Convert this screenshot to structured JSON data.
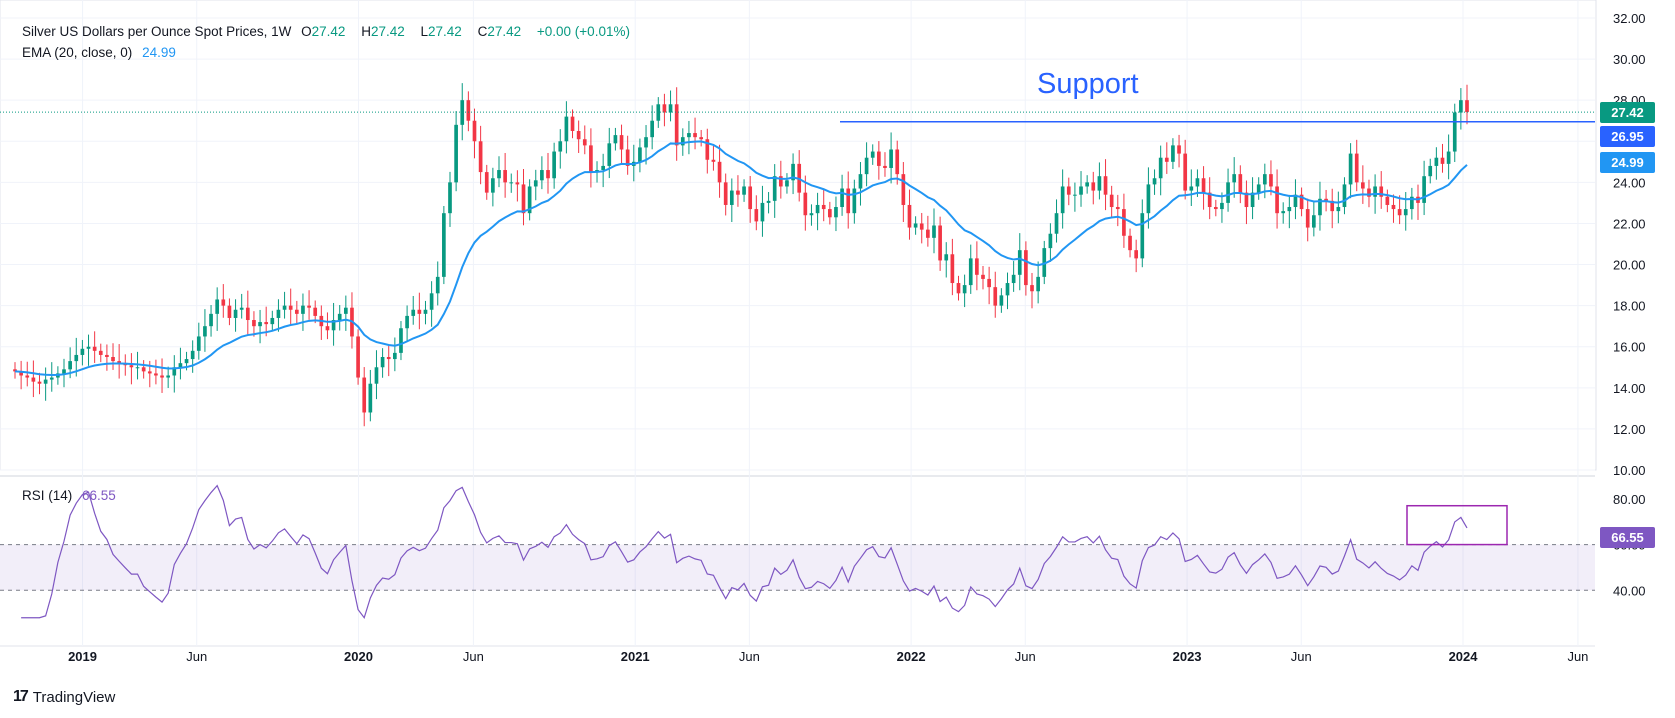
{
  "header": {
    "symbol": "Silver US Dollars per Ounce Spot Prices, 1W",
    "o_label": "O",
    "o_val": "27.42",
    "h_label": "H",
    "h_val": "27.42",
    "l_label": "L",
    "l_val": "27.42",
    "c_label": "C",
    "c_val": "27.42",
    "change": "+0.00 (+0.01%)"
  },
  "ema_legend": {
    "label": "EMA (20, close, 0)",
    "value": "24.99"
  },
  "rsi_legend": {
    "label": "RSI (14)",
    "value": "66.55"
  },
  "price_tags": {
    "last": "27.42",
    "support": "26.95",
    "ema": "24.99",
    "rsi": "66.55"
  },
  "annotation": {
    "text": "Support"
  },
  "branding": {
    "text": "TradingView",
    "mark": "17"
  },
  "colors": {
    "up": "#089981",
    "down": "#f23645",
    "ema": "#2196f3",
    "rsi": "#7e57c2",
    "support": "#2962ff",
    "box": "#9c27b0"
  },
  "chart_data": [
    {
      "type": "candlestick",
      "title": "Silver US Dollars per Ounce Spot Prices, 1W",
      "y_ticks": [
        "32.00",
        "30.00",
        "28.00",
        "26.00",
        "24.00",
        "22.00",
        "20.00",
        "18.00",
        "16.00",
        "14.00",
        "12.00",
        "10.00"
      ],
      "ylim": [
        10,
        32
      ],
      "x_ticks": [
        "2019",
        "Jun",
        "2020",
        "Jun",
        "2021",
        "Jun",
        "2022",
        "Jun",
        "2023",
        "Jun",
        "2024",
        "Jun"
      ],
      "x_range": [
        "2018-09",
        "2024-10"
      ],
      "support_level": 26.95,
      "last_close": 27.42,
      "close_series_weekly_approx": [
        14.8,
        14.6,
        14.5,
        14.3,
        14.2,
        14.4,
        14.5,
        14.7,
        14.9,
        15.3,
        15.6,
        15.9,
        16.0,
        15.8,
        15.6,
        15.5,
        15.3,
        15.2,
        15.1,
        15.0,
        15.0,
        14.8,
        14.7,
        14.6,
        14.5,
        14.6,
        15.0,
        15.2,
        15.4,
        15.8,
        16.5,
        17.0,
        17.6,
        18.3,
        18.0,
        17.4,
        17.8,
        17.9,
        17.3,
        17.0,
        17.2,
        17.1,
        17.4,
        17.8,
        18.0,
        17.8,
        17.6,
        18.0,
        17.9,
        17.5,
        17.0,
        16.8,
        17.3,
        17.6,
        17.9,
        16.5,
        14.5,
        12.8,
        14.2,
        15.0,
        15.5,
        15.4,
        15.7,
        16.9,
        17.5,
        17.8,
        17.6,
        17.8,
        18.6,
        19.4,
        22.5,
        24.0,
        26.8,
        28.0,
        27.0,
        26.0,
        24.5,
        23.5,
        24.2,
        24.6,
        24.0,
        24.0,
        23.9,
        22.5,
        23.8,
        24.1,
        24.6,
        24.2,
        25.5,
        26.0,
        27.2,
        26.5,
        26.1,
        25.8,
        24.5,
        24.6,
        24.8,
        25.9,
        26.3,
        25.6,
        24.8,
        25.0,
        25.7,
        26.2,
        27.0,
        27.8,
        27.4,
        27.8,
        25.8,
        26.2,
        26.4,
        26.2,
        26.1,
        25.1,
        25.0,
        24.0,
        22.9,
        23.6,
        23.4,
        23.8,
        22.7,
        22.1,
        23.0,
        23.1,
        24.3,
        23.8,
        24.1,
        24.9,
        23.5,
        22.4,
        22.5,
        22.9,
        22.7,
        22.3,
        22.8,
        23.7,
        22.5,
        23.7,
        24.4,
        25.2,
        25.5,
        24.8,
        24.7,
        25.6,
        24.4,
        22.9,
        21.8,
        22.0,
        21.7,
        21.3,
        21.9,
        20.2,
        20.5,
        19.1,
        18.6,
        19.0,
        20.3,
        19.5,
        19.3,
        18.9,
        18.0,
        18.5,
        19.1,
        19.5,
        20.7,
        19.0,
        18.7,
        19.4,
        20.8,
        21.5,
        22.5,
        23.8,
        23.4,
        23.4,
        23.8,
        24.0,
        23.6,
        24.3,
        23.4,
        22.8,
        22.7,
        21.4,
        20.7,
        20.3,
        22.5,
        23.9,
        24.2,
        25.2,
        25.0,
        25.8,
        25.4,
        23.6,
        23.8,
        24.2,
        23.5,
        22.8,
        22.7,
        23.0,
        24.0,
        24.4,
        23.5,
        22.8,
        23.5,
        23.9,
        24.4,
        23.8,
        22.5,
        22.6,
        22.8,
        23.4,
        22.7,
        21.8,
        22.4,
        23.2,
        23.1,
        22.6,
        22.8,
        23.9,
        25.4,
        24.0,
        23.7,
        23.3,
        23.8,
        23.3,
        22.9,
        22.7,
        22.4,
        22.7,
        23.3,
        23.0,
        24.3,
        24.8,
        25.2,
        24.9,
        25.5,
        27.4,
        28.0,
        27.42
      ]
    },
    {
      "type": "line",
      "title": "RSI (14)",
      "y_ticks": [
        "80.00",
        "60.00",
        "40.00"
      ],
      "ylim": [
        20,
        90
      ],
      "band": [
        40,
        60
      ],
      "last_value": 66.55
    }
  ]
}
